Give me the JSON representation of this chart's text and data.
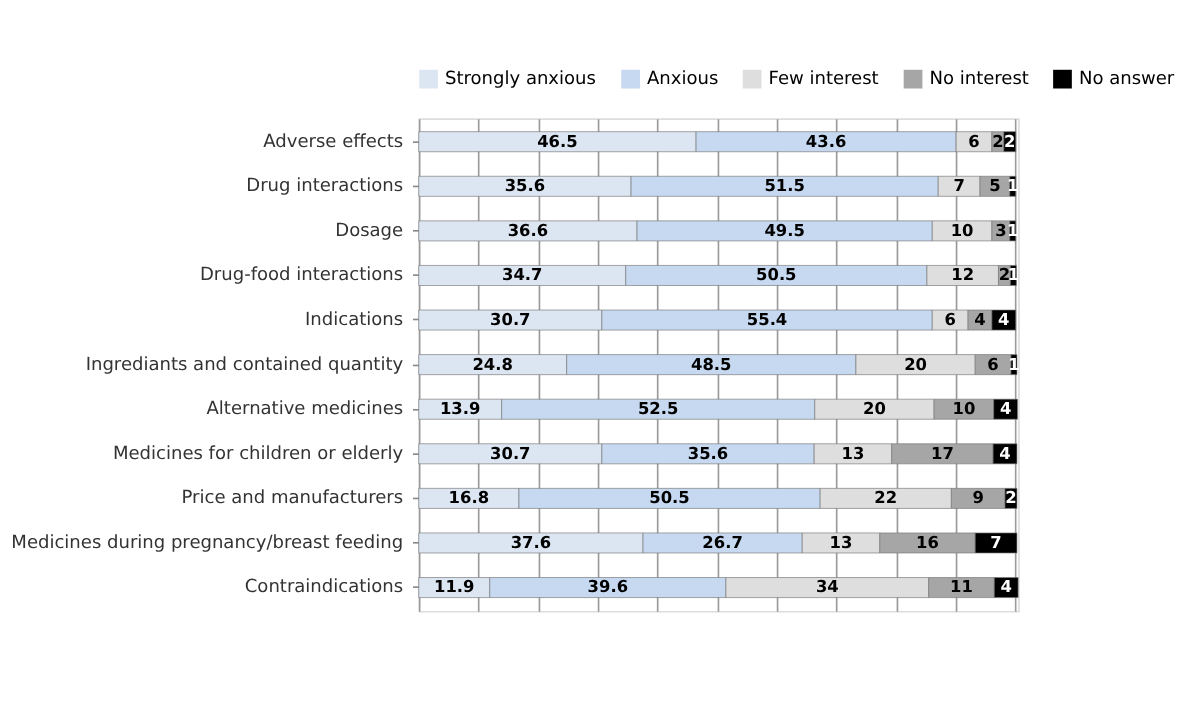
{
  "chart_data": {
    "type": "bar",
    "orientation": "horizontal",
    "stacked": true,
    "data_labels": true,
    "legend": "top",
    "grid": "x",
    "tick_labels": "y",
    "categories": [
      "Adverse effects",
      "Drug interactions",
      "Dosage",
      "Drug-food interactions",
      "Indications",
      "Ingrediants and contained quantity",
      "Alternative medicines",
      "Medicines for children or elderly",
      "Price and manufacturers",
      "Medicines during pregnancy/breast feeding",
      "Contraindications"
    ],
    "series": [
      {
        "name": "Strongly anxious",
        "color": "#dce6f2",
        "values": [
          46.5,
          35.6,
          36.6,
          34.7,
          30.7,
          24.8,
          13.9,
          30.7,
          16.8,
          37.6,
          11.9
        ]
      },
      {
        "name": "Anxious",
        "color": "#c6d9f1",
        "values": [
          43.6,
          51.5,
          49.5,
          50.5,
          55.4,
          48.5,
          52.5,
          35.6,
          50.5,
          26.7,
          39.6
        ]
      },
      {
        "name": "Few interest",
        "color": "#dedede",
        "values": [
          6,
          7,
          10,
          12,
          6,
          20,
          20,
          13,
          22,
          13,
          34
        ]
      },
      {
        "name": "No interest",
        "color": "#a6a6a6",
        "values": [
          2,
          5,
          3,
          2,
          4,
          6,
          10,
          17,
          9,
          16,
          11
        ]
      },
      {
        "name": "No answer",
        "color": "#000000",
        "values": [
          2,
          1,
          1,
          1,
          4,
          1,
          4,
          4,
          2,
          7,
          4
        ]
      }
    ]
  }
}
